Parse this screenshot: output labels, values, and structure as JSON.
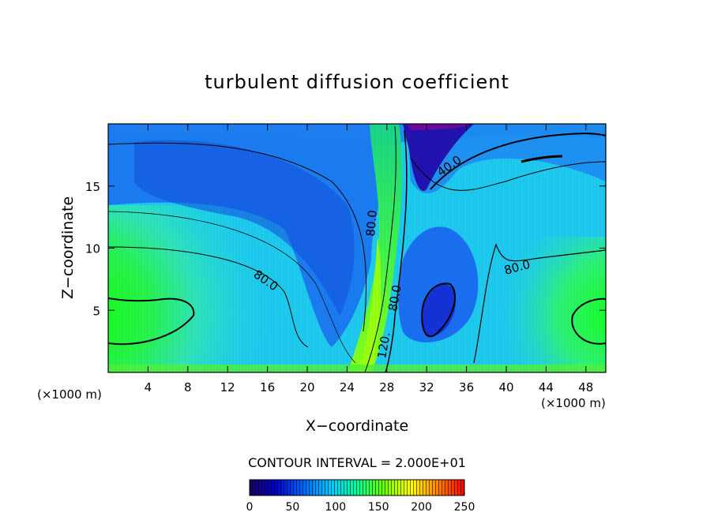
{
  "chart_data": {
    "type": "heatmap",
    "title": "turbulent diffusion coefficient",
    "xlabel": "X−coordinate",
    "ylabel": "Z−coordinate",
    "x_unit_left": "(×1000 m)",
    "x_unit_right": "(×1000 m)",
    "xlim": [
      0,
      50
    ],
    "ylim": [
      0,
      20
    ],
    "x_ticks": [
      4,
      8,
      12,
      16,
      20,
      24,
      28,
      32,
      36,
      40,
      44,
      48
    ],
    "y_ticks": [
      5,
      10,
      15
    ],
    "contour_interval_text": "CONTOUR INTERVAL = 2.000E+01",
    "contour_labels": [
      {
        "text": "80.0",
        "x": 18,
        "z": 7.2
      },
      {
        "text": "80.0",
        "x": 26.5,
        "z": 11.5
      },
      {
        "text": "80.0",
        "x": 28.5,
        "z": 6.0
      },
      {
        "text": "120.",
        "x": 27.0,
        "z": 2.2
      },
      {
        "text": "40.0",
        "x": 34.5,
        "z": 16.3
      },
      {
        "text": "80.0",
        "x": 41.5,
        "z": 8.5
      }
    ],
    "colorbar": {
      "range": [
        0,
        250
      ],
      "tick_labels": [
        "0",
        "50",
        "100",
        "150",
        "200",
        "250"
      ],
      "colors": [
        "#1a0060",
        "#0000cc",
        "#0066ff",
        "#00ccff",
        "#00ff99",
        "#66ff00",
        "#ffff00",
        "#ff8800",
        "#ff0000"
      ]
    }
  }
}
